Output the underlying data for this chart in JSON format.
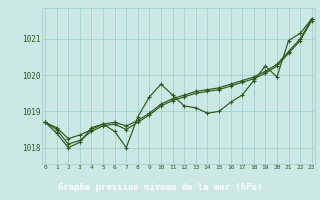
{
  "hours": [
    0,
    1,
    2,
    3,
    4,
    5,
    6,
    7,
    8,
    9,
    10,
    11,
    12,
    13,
    14,
    15,
    16,
    17,
    18,
    19,
    20,
    21,
    22,
    23
  ],
  "line_smooth1": [
    1018.7,
    1018.55,
    1018.25,
    1018.35,
    1018.5,
    1018.65,
    1018.7,
    1018.6,
    1018.75,
    1018.95,
    1019.2,
    1019.35,
    1019.45,
    1019.55,
    1019.6,
    1019.65,
    1019.75,
    1019.85,
    1019.95,
    1020.1,
    1020.3,
    1020.65,
    1021.0,
    1021.55
  ],
  "line_smooth2": [
    1018.7,
    1018.5,
    1018.1,
    1018.2,
    1018.45,
    1018.6,
    1018.65,
    1018.5,
    1018.7,
    1018.9,
    1019.15,
    1019.3,
    1019.4,
    1019.5,
    1019.55,
    1019.6,
    1019.7,
    1019.8,
    1019.9,
    1020.05,
    1020.25,
    1020.6,
    1020.95,
    1021.5
  ],
  "line_detail": [
    1018.7,
    1018.4,
    1018.0,
    1018.15,
    1018.55,
    1018.65,
    1018.45,
    1018.0,
    1018.85,
    1019.4,
    1019.75,
    1019.45,
    1019.15,
    1019.1,
    1018.95,
    1019.0,
    1019.25,
    1019.45,
    1019.85,
    1020.25,
    1019.95,
    1020.95,
    1021.15,
    1021.55
  ],
  "bg_color": "#cce8e4",
  "grid_color": "#99cccc",
  "line_color": "#2d5a1b",
  "title": "Graphe pression niveau de la mer (hPa)",
  "ylim_min": 1017.55,
  "ylim_max": 1021.85,
  "yticks": [
    1018,
    1019,
    1020,
    1021
  ],
  "title_bg": "#336633",
  "title_fg": "#ffffff",
  "marker_size": 2.2,
  "linewidth": 0.85
}
